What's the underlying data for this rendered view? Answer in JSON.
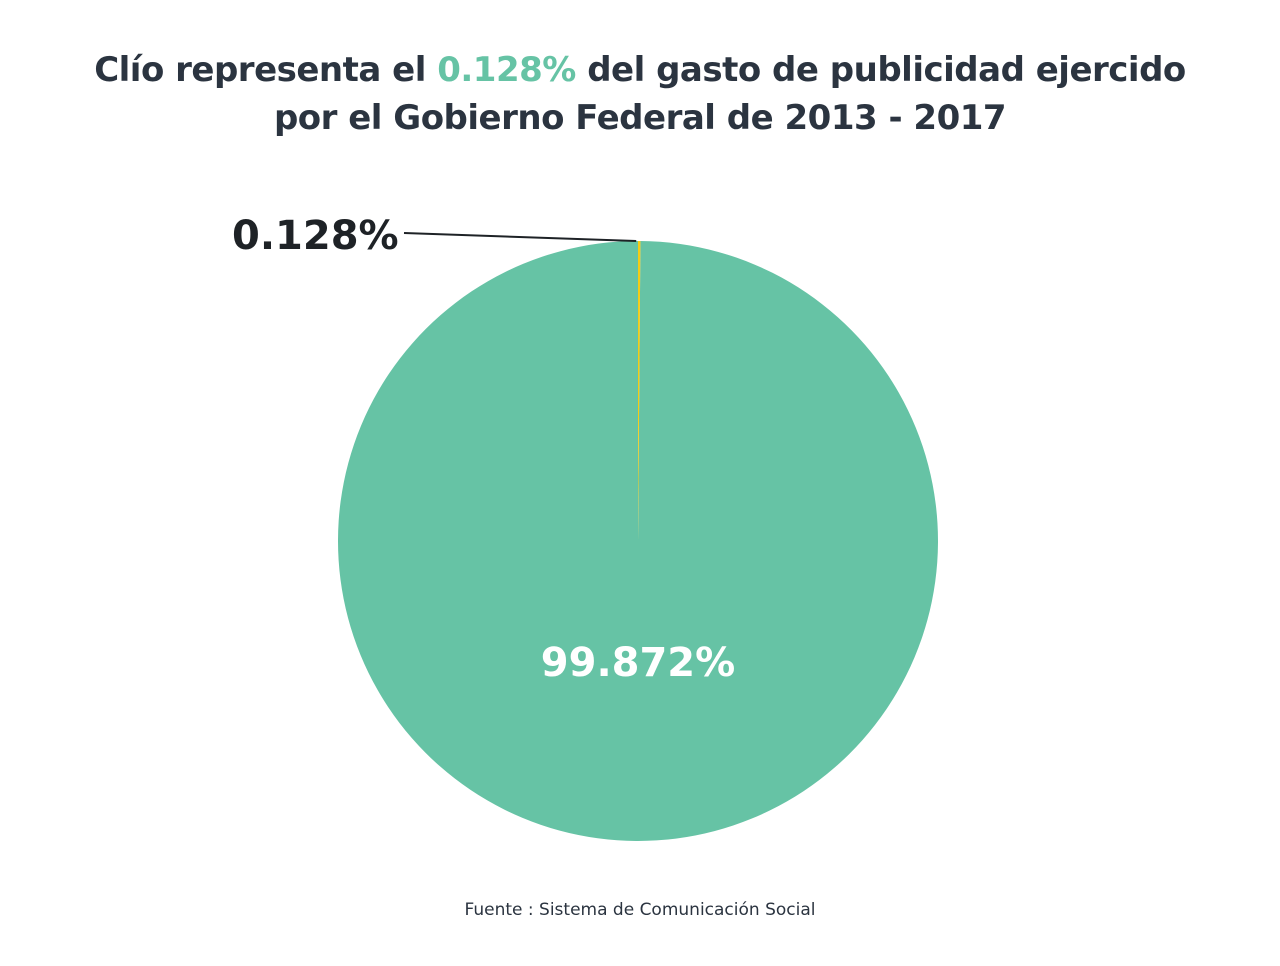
{
  "title": {
    "part1": "Clío representa el ",
    "highlight": "0.128%",
    "part2": " del gasto de publicidad ejercido",
    "line2": "por el Gobierno Federal de 2013 - 2017"
  },
  "chart_data": {
    "type": "pie",
    "slices": [
      {
        "label": "0.128%",
        "value": 0.128,
        "color": "#f5cc14"
      },
      {
        "label": "99.872%",
        "value": 99.872,
        "color": "#66c3a5"
      }
    ]
  },
  "source": "Fuente : Sistema de Comunicación Social",
  "colors": {
    "title": "#2b3440",
    "accent": "#66c3a5",
    "small_slice": "#f5cc14",
    "large_slice": "#66c3a5"
  }
}
